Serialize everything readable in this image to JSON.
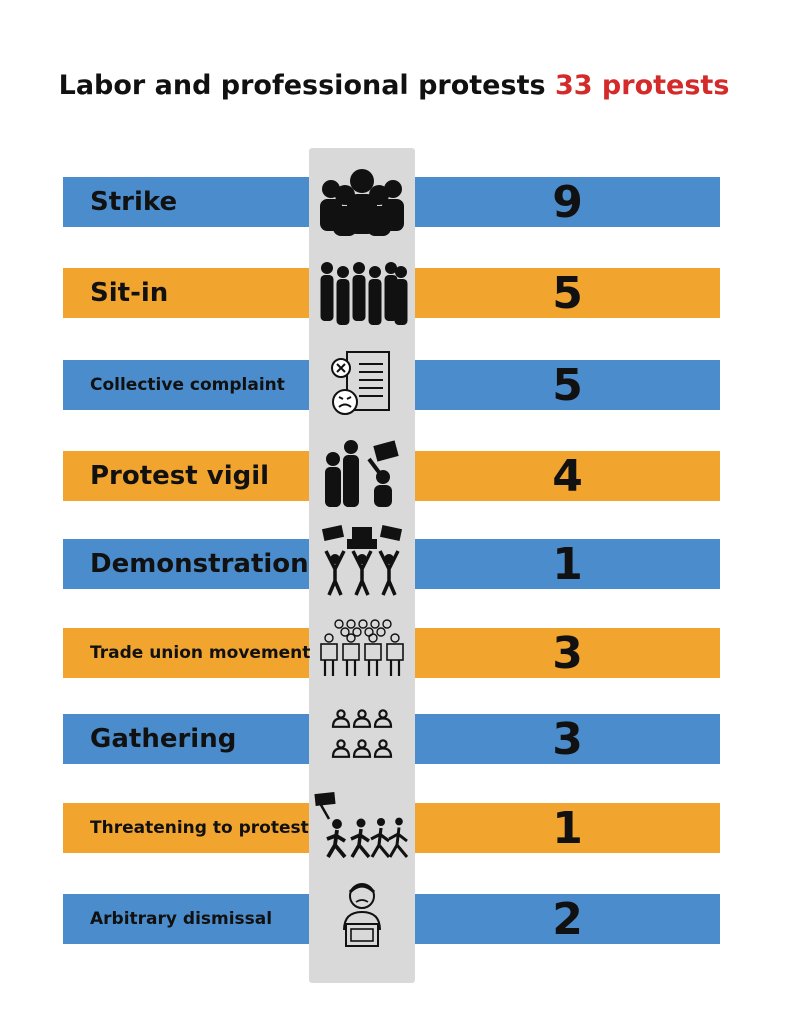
{
  "header": {
    "title": "Labor and professional protests",
    "total": "33 protests"
  },
  "colors": {
    "blue": "#4b8dcc",
    "orange": "#f2a52e",
    "icon_column": "#d9d9d9",
    "accent": "#d42a2a"
  },
  "chart_data": {
    "type": "bar",
    "title": "Labor and professional protests 33 protests",
    "categories": [
      "Strike",
      "Sit-in",
      "Collective complaint",
      "Protest vigil",
      "Demonstration",
      "Trade union movement",
      "Gathering",
      "Threatening to protest",
      "Arbitrary dismissal"
    ],
    "values": [
      9,
      5,
      5,
      4,
      1,
      3,
      3,
      1,
      2
    ],
    "value_labels": [
      "9",
      "5",
      "5",
      "4",
      "1",
      "3",
      "3",
      "1",
      "2"
    ],
    "icons": [
      "crowd-icon",
      "sit-in-group-icon",
      "complaint-document-icon",
      "vigil-group-icon",
      "demonstration-signs-icon",
      "union-group-icon",
      "gathering-people-icon",
      "marching-protest-icon",
      "dismissed-worker-icon"
    ],
    "row_colors": [
      "blue",
      "orange",
      "blue",
      "orange",
      "blue",
      "orange",
      "blue",
      "orange",
      "blue"
    ]
  }
}
